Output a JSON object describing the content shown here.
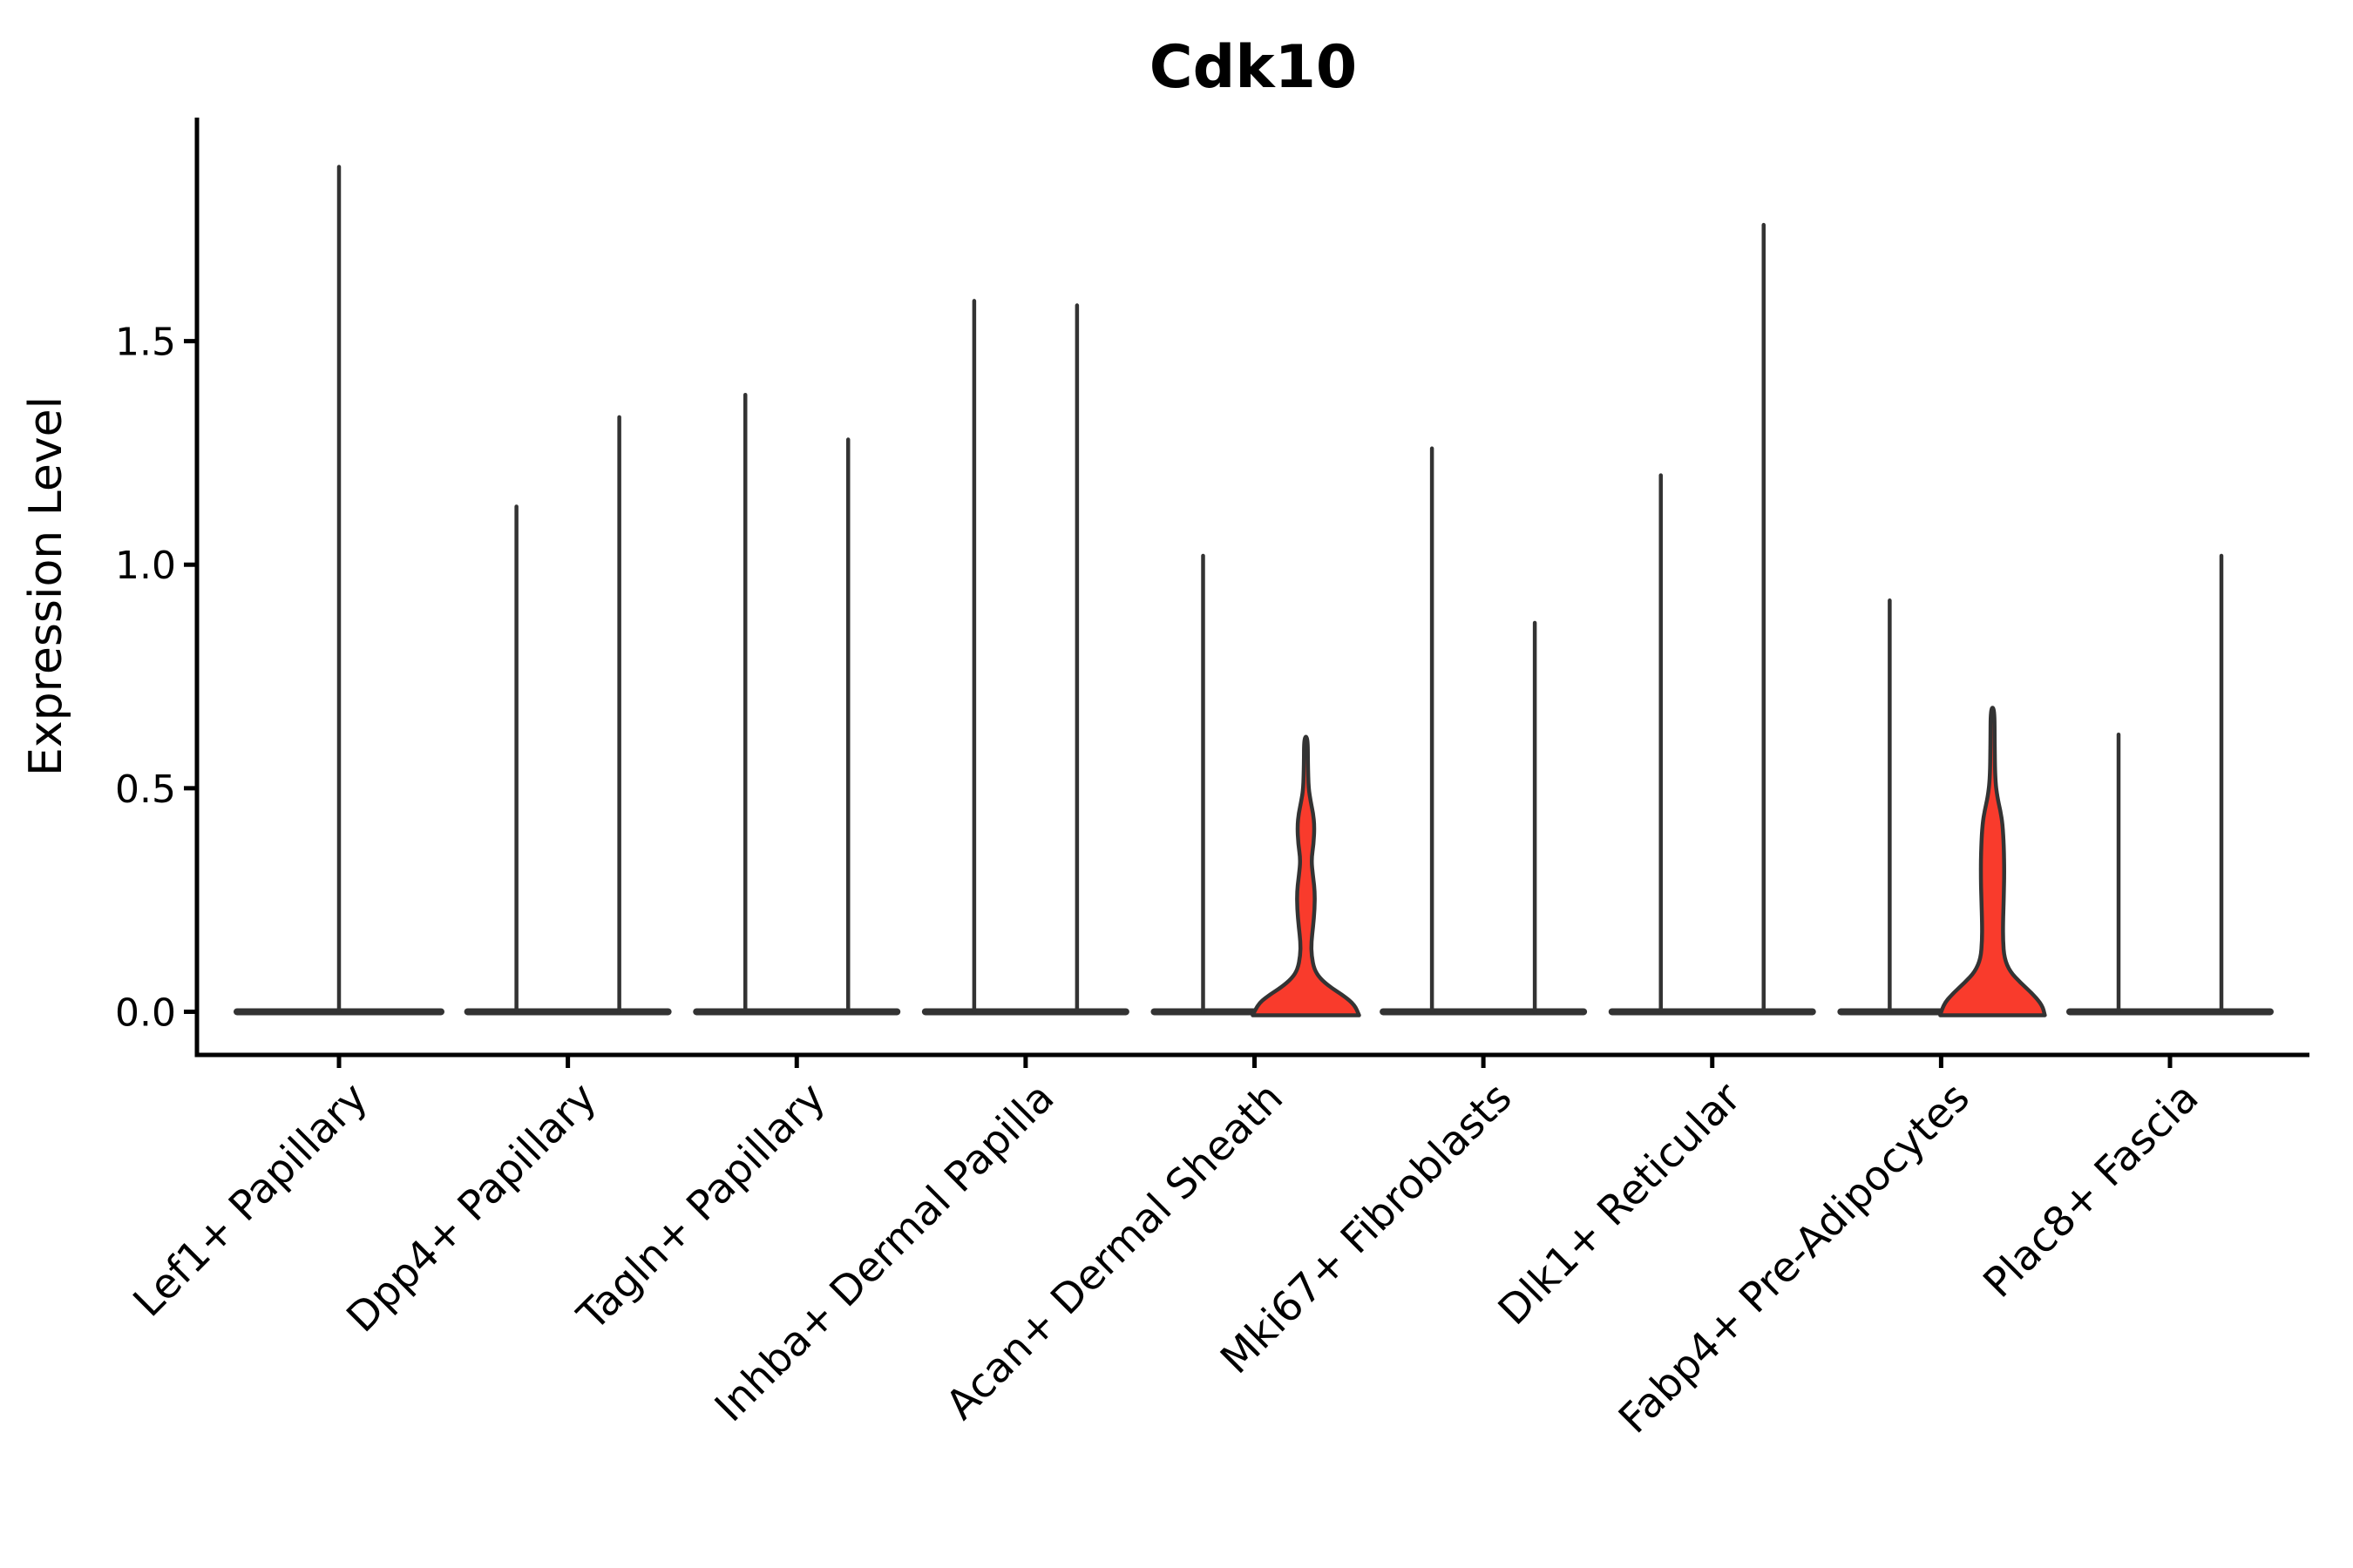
{
  "title": "Cdk10",
  "colors": {
    "background": "#ffffff",
    "axis": "#000000",
    "text": "#000000",
    "violin_outline": "#333333",
    "violin_fill_red": "#f93b2c"
  },
  "chart_data": {
    "type": "violin",
    "title": "Cdk10",
    "xlabel": "",
    "ylabel": "Expression Level",
    "legend": "none",
    "grid": false,
    "ytick_labels": [
      "0.0",
      "0.5",
      "1.0",
      "1.5"
    ],
    "ytick_values": [
      0.0,
      0.5,
      1.0,
      1.5
    ],
    "ylim": [
      -0.0965,
      2.0
    ],
    "categories": [
      "Lef1+ Papillary",
      "Dpp4+ Papillary",
      "Tagln+ Papillary",
      "Inhba+ Dermal Papilla",
      "Acan+ Dermal Sheath",
      "Mki67+ Fibroblasts",
      "Dlk1+ Reticular",
      "Fabp4+ Pre-Adipocytes",
      "Plac8+ Fascia"
    ],
    "groups": [
      {
        "category": "Lef1+ Papillary",
        "violins": [
          {
            "position": "center",
            "max": 1.89,
            "style": "spike"
          }
        ]
      },
      {
        "category": "Dpp4+ Papillary",
        "violins": [
          {
            "position": "left",
            "max": 1.13,
            "style": "spike"
          },
          {
            "position": "right",
            "max": 1.33,
            "style": "spike"
          }
        ]
      },
      {
        "category": "Tagln+ Papillary",
        "violins": [
          {
            "position": "left",
            "max": 1.38,
            "style": "spike"
          },
          {
            "position": "right",
            "max": 1.28,
            "style": "spike"
          }
        ]
      },
      {
        "category": "Inhba+ Dermal Papilla",
        "violins": [
          {
            "position": "left",
            "max": 1.59,
            "style": "spike"
          },
          {
            "position": "right",
            "max": 1.58,
            "style": "spike"
          }
        ]
      },
      {
        "category": "Acan+ Dermal Sheath",
        "violins": [
          {
            "position": "left",
            "max": 1.02,
            "style": "spike"
          },
          {
            "position": "right",
            "max": 0.615,
            "style": "filled",
            "fill": "red",
            "profile": [
              [
                0,
                61
              ],
              [
                0.015,
                56
              ],
              [
                0.035,
                44
              ],
              [
                0.055,
                28
              ],
              [
                0.075,
                16
              ],
              [
                0.095,
                9.5
              ],
              [
                0.125,
                6.5
              ],
              [
                0.155,
                6.2
              ],
              [
                0.19,
                8.2
              ],
              [
                0.23,
                10
              ],
              [
                0.27,
                10.2
              ],
              [
                0.305,
                8
              ],
              [
                0.34,
                6.2
              ],
              [
                0.375,
                8.8
              ],
              [
                0.415,
                9.8
              ],
              [
                0.445,
                8.2
              ],
              [
                0.47,
                5.5
              ],
              [
                0.5,
                3
              ],
              [
                0.55,
                2.3
              ],
              [
                0.615,
                2.1
              ]
            ]
          }
        ]
      },
      {
        "category": "Mki67+ Fibroblasts",
        "violins": [
          {
            "position": "left",
            "max": 1.26,
            "style": "spike"
          },
          {
            "position": "right",
            "max": 0.87,
            "style": "spike"
          }
        ]
      },
      {
        "category": "Dlk1+ Reticular",
        "violins": [
          {
            "position": "left",
            "max": 1.2,
            "style": "spike"
          },
          {
            "position": "right",
            "max": 1.76,
            "style": "spike"
          }
        ]
      },
      {
        "category": "Fabp4+ Pre-Adipocytes",
        "violins": [
          {
            "position": "left",
            "max": 0.92,
            "style": "spike"
          },
          {
            "position": "right",
            "max": 0.68,
            "style": "filled",
            "fill": "red",
            "profile": [
              [
                0,
                60
              ],
              [
                0.015,
                57
              ],
              [
                0.04,
                46
              ],
              [
                0.065,
                32
              ],
              [
                0.09,
                20
              ],
              [
                0.12,
                13.5
              ],
              [
                0.16,
                12
              ],
              [
                0.2,
                12
              ],
              [
                0.25,
                12.8
              ],
              [
                0.31,
                13.5
              ],
              [
                0.37,
                13
              ],
              [
                0.42,
                11.5
              ],
              [
                0.45,
                9
              ],
              [
                0.48,
                5.5
              ],
              [
                0.52,
                3
              ],
              [
                0.6,
                2.4
              ],
              [
                0.68,
                2.2
              ]
            ]
          }
        ]
      },
      {
        "category": "Plac8+ Fascia",
        "violins": [
          {
            "position": "left",
            "max": 0.62,
            "style": "spike"
          },
          {
            "position": "right",
            "max": 1.02,
            "style": "spike"
          }
        ]
      }
    ]
  }
}
